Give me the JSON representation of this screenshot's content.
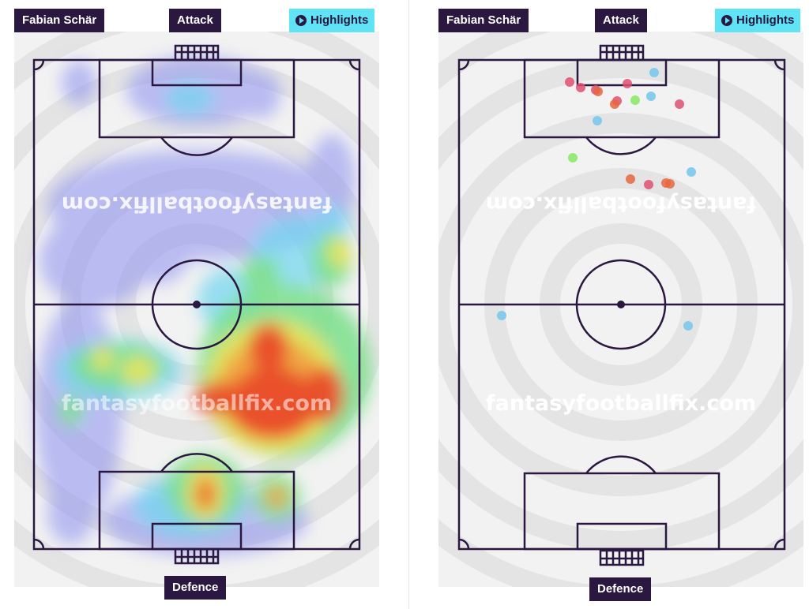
{
  "left_panel": {
    "player_name": "Fabian Schär",
    "attack_label": "Attack",
    "defence_label": "Defence",
    "highlights_label": "Highlights",
    "watermark": "fantasyfootballfix.com"
  },
  "right_panel": {
    "player_name": "Fabian Schär",
    "attack_label": "Attack",
    "defence_label": "Defence",
    "highlights_label": "Highlights",
    "watermark": "fantasyfootballfix.com"
  },
  "colors": {
    "navy": "#2a1840",
    "highlight_cyan": "#5fe3f5",
    "pitch_bg": "#f2f2f2",
    "dot_red": "#e05070",
    "dot_orange": "#e8663f",
    "dot_green": "#8de86a",
    "dot_blue": "#7cc8ec"
  },
  "icons": {
    "highlights": "play-circle-icon"
  }
}
